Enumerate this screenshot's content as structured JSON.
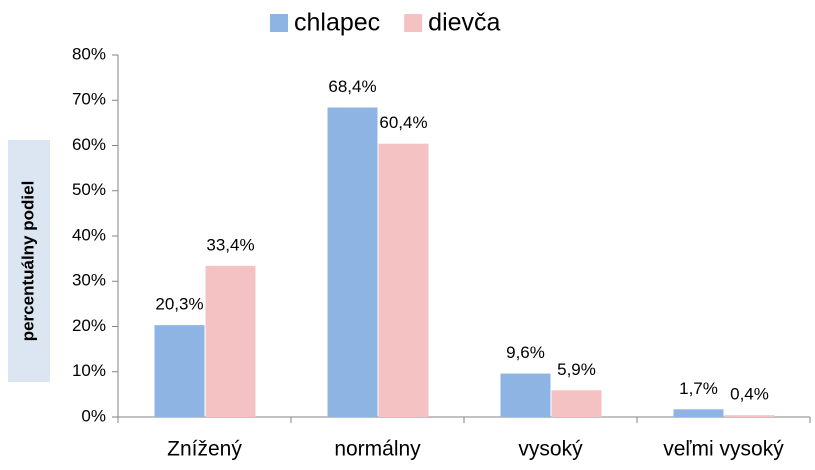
{
  "chart_data": {
    "type": "bar",
    "ylabel": "percentuálny podiel",
    "categories": [
      "Znížený",
      "normálny",
      "vysoký",
      "veľmi vysoký"
    ],
    "series": [
      {
        "name": "chlapec",
        "color": "#8db4e3",
        "values": [
          20.3,
          68.4,
          9.6,
          1.7
        ],
        "value_labels": [
          "20,3%",
          "68,4%",
          "9,6%",
          "1,7%"
        ]
      },
      {
        "name": "dievča",
        "color": "#f4c2c3",
        "values": [
          33.4,
          60.4,
          5.9,
          0.4
        ],
        "value_labels": [
          "33,4%",
          "60,4%",
          "5,9%",
          "0,4%"
        ]
      }
    ],
    "ylim": [
      0,
      80
    ],
    "yticks": [
      {
        "value": 0,
        "label": "0%"
      },
      {
        "value": 10,
        "label": "10%"
      },
      {
        "value": 20,
        "label": "20%"
      },
      {
        "value": 30,
        "label": "30%"
      },
      {
        "value": 40,
        "label": "40%"
      },
      {
        "value": 50,
        "label": "50%"
      },
      {
        "value": 60,
        "label": "60%"
      },
      {
        "value": 70,
        "label": "70%"
      },
      {
        "value": 80,
        "label": "80%"
      }
    ],
    "grid": false,
    "legend": "top"
  }
}
